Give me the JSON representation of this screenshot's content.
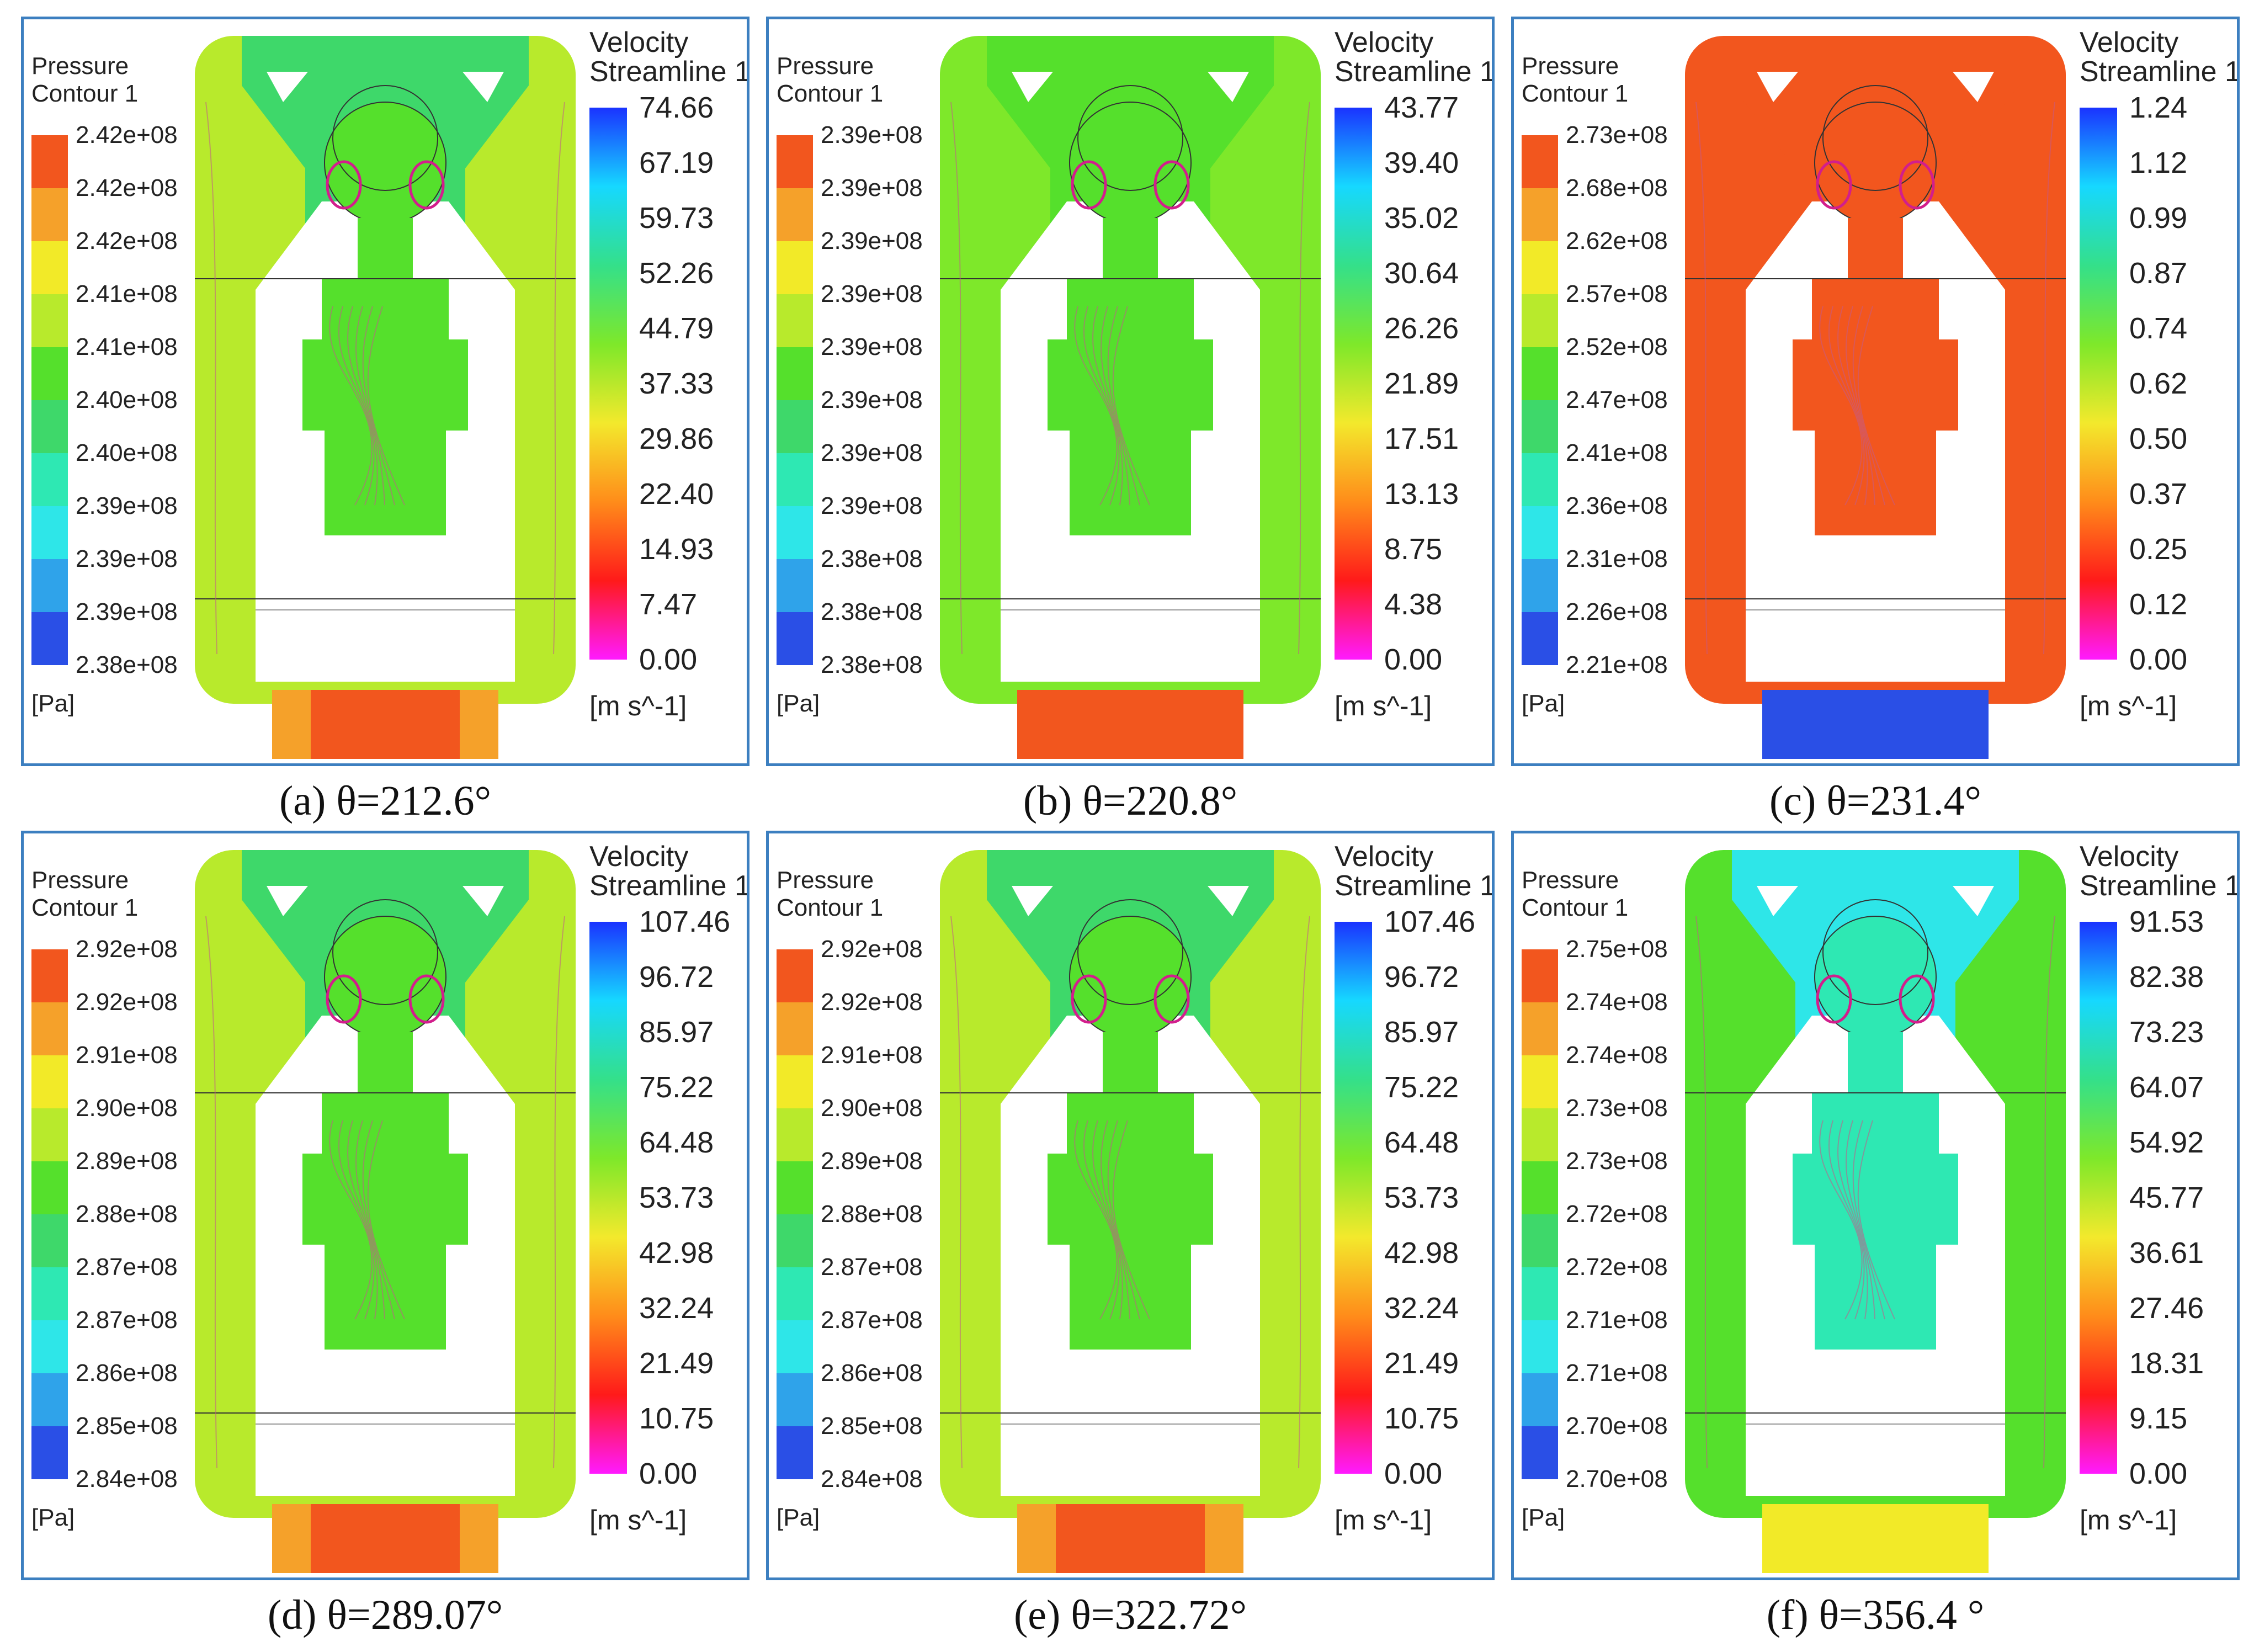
{
  "legend_titles": {
    "pressure_line1": "Pressure",
    "pressure_line2": "Contour 1",
    "pressure_unit": "[Pa]",
    "velocity_line1": "Velocity",
    "velocity_line2": "Streamline 1",
    "velocity_unit": "[m s^-1]"
  },
  "colors": {
    "frame_border": "#3c7fc0",
    "pressure_scale": [
      "#2a4fe6",
      "#2fa3ea",
      "#2ee6e8",
      "#2ee8b3",
      "#3ed86a",
      "#55e02c",
      "#b8ea2c",
      "#f2ea28",
      "#f5a12a",
      "#f2561e"
    ],
    "velocity_scale": [
      "#1a33ff",
      "#16d8ff",
      "#34e08a",
      "#7ee82a",
      "#f3e92c",
      "#ff8c1a",
      "#ff1a1a",
      "#ff1aff"
    ]
  },
  "panels": [
    {
      "caption": "(a) θ=212.6°",
      "pressure_ticks": [
        "2.42e+08",
        "2.42e+08",
        "2.42e+08",
        "2.41e+08",
        "2.41e+08",
        "2.40e+08",
        "2.40e+08",
        "2.39e+08",
        "2.39e+08",
        "2.39e+08",
        "2.38e+08"
      ],
      "velocity_ticks": [
        "74.66",
        "67.19",
        "59.73",
        "52.26",
        "44.79",
        "37.33",
        "29.86",
        "22.40",
        "14.93",
        "7.47",
        "0.00"
      ],
      "field_colors": {
        "body": "#55e02c",
        "outer": "#b8ea2c",
        "cap": "#3ed86a",
        "outlet": "#f2561e",
        "outlet_side": "#f5a12a"
      }
    },
    {
      "caption": "(b) θ=220.8°",
      "pressure_ticks": [
        "2.39e+08",
        "2.39e+08",
        "2.39e+08",
        "2.39e+08",
        "2.39e+08",
        "2.39e+08",
        "2.39e+08",
        "2.39e+08",
        "2.38e+08",
        "2.38e+08",
        "2.38e+08"
      ],
      "velocity_ticks": [
        "43.77",
        "39.40",
        "35.02",
        "30.64",
        "26.26",
        "21.89",
        "17.51",
        "13.13",
        "8.75",
        "4.38",
        "0.00"
      ],
      "field_colors": {
        "body": "#55e02c",
        "outer": "#7ee82a",
        "cap": "#55e02c",
        "outlet": "#f2561e",
        "outlet_side": "#f2561e"
      }
    },
    {
      "caption": "(c) θ=231.4°",
      "pressure_ticks": [
        "2.73e+08",
        "2.68e+08",
        "2.62e+08",
        "2.57e+08",
        "2.52e+08",
        "2.47e+08",
        "2.41e+08",
        "2.36e+08",
        "2.31e+08",
        "2.26e+08",
        "2.21e+08"
      ],
      "velocity_ticks": [
        "1.24",
        "1.12",
        "0.99",
        "0.87",
        "0.74",
        "0.62",
        "0.50",
        "0.37",
        "0.25",
        "0.12",
        "0.00"
      ],
      "field_colors": {
        "body": "#f2561e",
        "outer": "#f2561e",
        "cap": "#f2561e",
        "outlet": "#2a4fe6",
        "outlet_side": "#2a4fe6"
      }
    },
    {
      "caption": "(d) θ=289.07°",
      "pressure_ticks": [
        "2.92e+08",
        "2.92e+08",
        "2.91e+08",
        "2.90e+08",
        "2.89e+08",
        "2.88e+08",
        "2.87e+08",
        "2.87e+08",
        "2.86e+08",
        "2.85e+08",
        "2.84e+08"
      ],
      "velocity_ticks": [
        "107.46",
        "96.72",
        "85.97",
        "75.22",
        "64.48",
        "53.73",
        "42.98",
        "32.24",
        "21.49",
        "10.75",
        "0.00"
      ],
      "field_colors": {
        "body": "#55e02c",
        "outer": "#b8ea2c",
        "cap": "#3ed86a",
        "outlet": "#f2561e",
        "outlet_side": "#f5a12a"
      }
    },
    {
      "caption": "(e) θ=322.72°",
      "pressure_ticks": [
        "2.92e+08",
        "2.92e+08",
        "2.91e+08",
        "2.90e+08",
        "2.89e+08",
        "2.88e+08",
        "2.87e+08",
        "2.87e+08",
        "2.86e+08",
        "2.85e+08",
        "2.84e+08"
      ],
      "velocity_ticks": [
        "107.46",
        "96.72",
        "85.97",
        "75.22",
        "64.48",
        "53.73",
        "42.98",
        "32.24",
        "21.49",
        "10.75",
        "0.00"
      ],
      "field_colors": {
        "body": "#55e02c",
        "outer": "#b8ea2c",
        "cap": "#3ed86a",
        "outlet": "#f2561e",
        "outlet_side": "#f5a12a"
      }
    },
    {
      "caption": "(f) θ=356.4 °",
      "pressure_ticks": [
        "2.75e+08",
        "2.74e+08",
        "2.74e+08",
        "2.73e+08",
        "2.73e+08",
        "2.72e+08",
        "2.72e+08",
        "2.71e+08",
        "2.71e+08",
        "2.70e+08",
        "2.70e+08"
      ],
      "velocity_ticks": [
        "91.53",
        "82.38",
        "73.23",
        "64.07",
        "54.92",
        "45.77",
        "36.61",
        "27.46",
        "18.31",
        "9.15",
        "0.00"
      ],
      "field_colors": {
        "body": "#2ee8b3",
        "outer": "#55e02c",
        "cap": "#2ee6e8",
        "outlet": "#f2ea28",
        "outlet_side": "#f2ea28"
      }
    }
  ]
}
